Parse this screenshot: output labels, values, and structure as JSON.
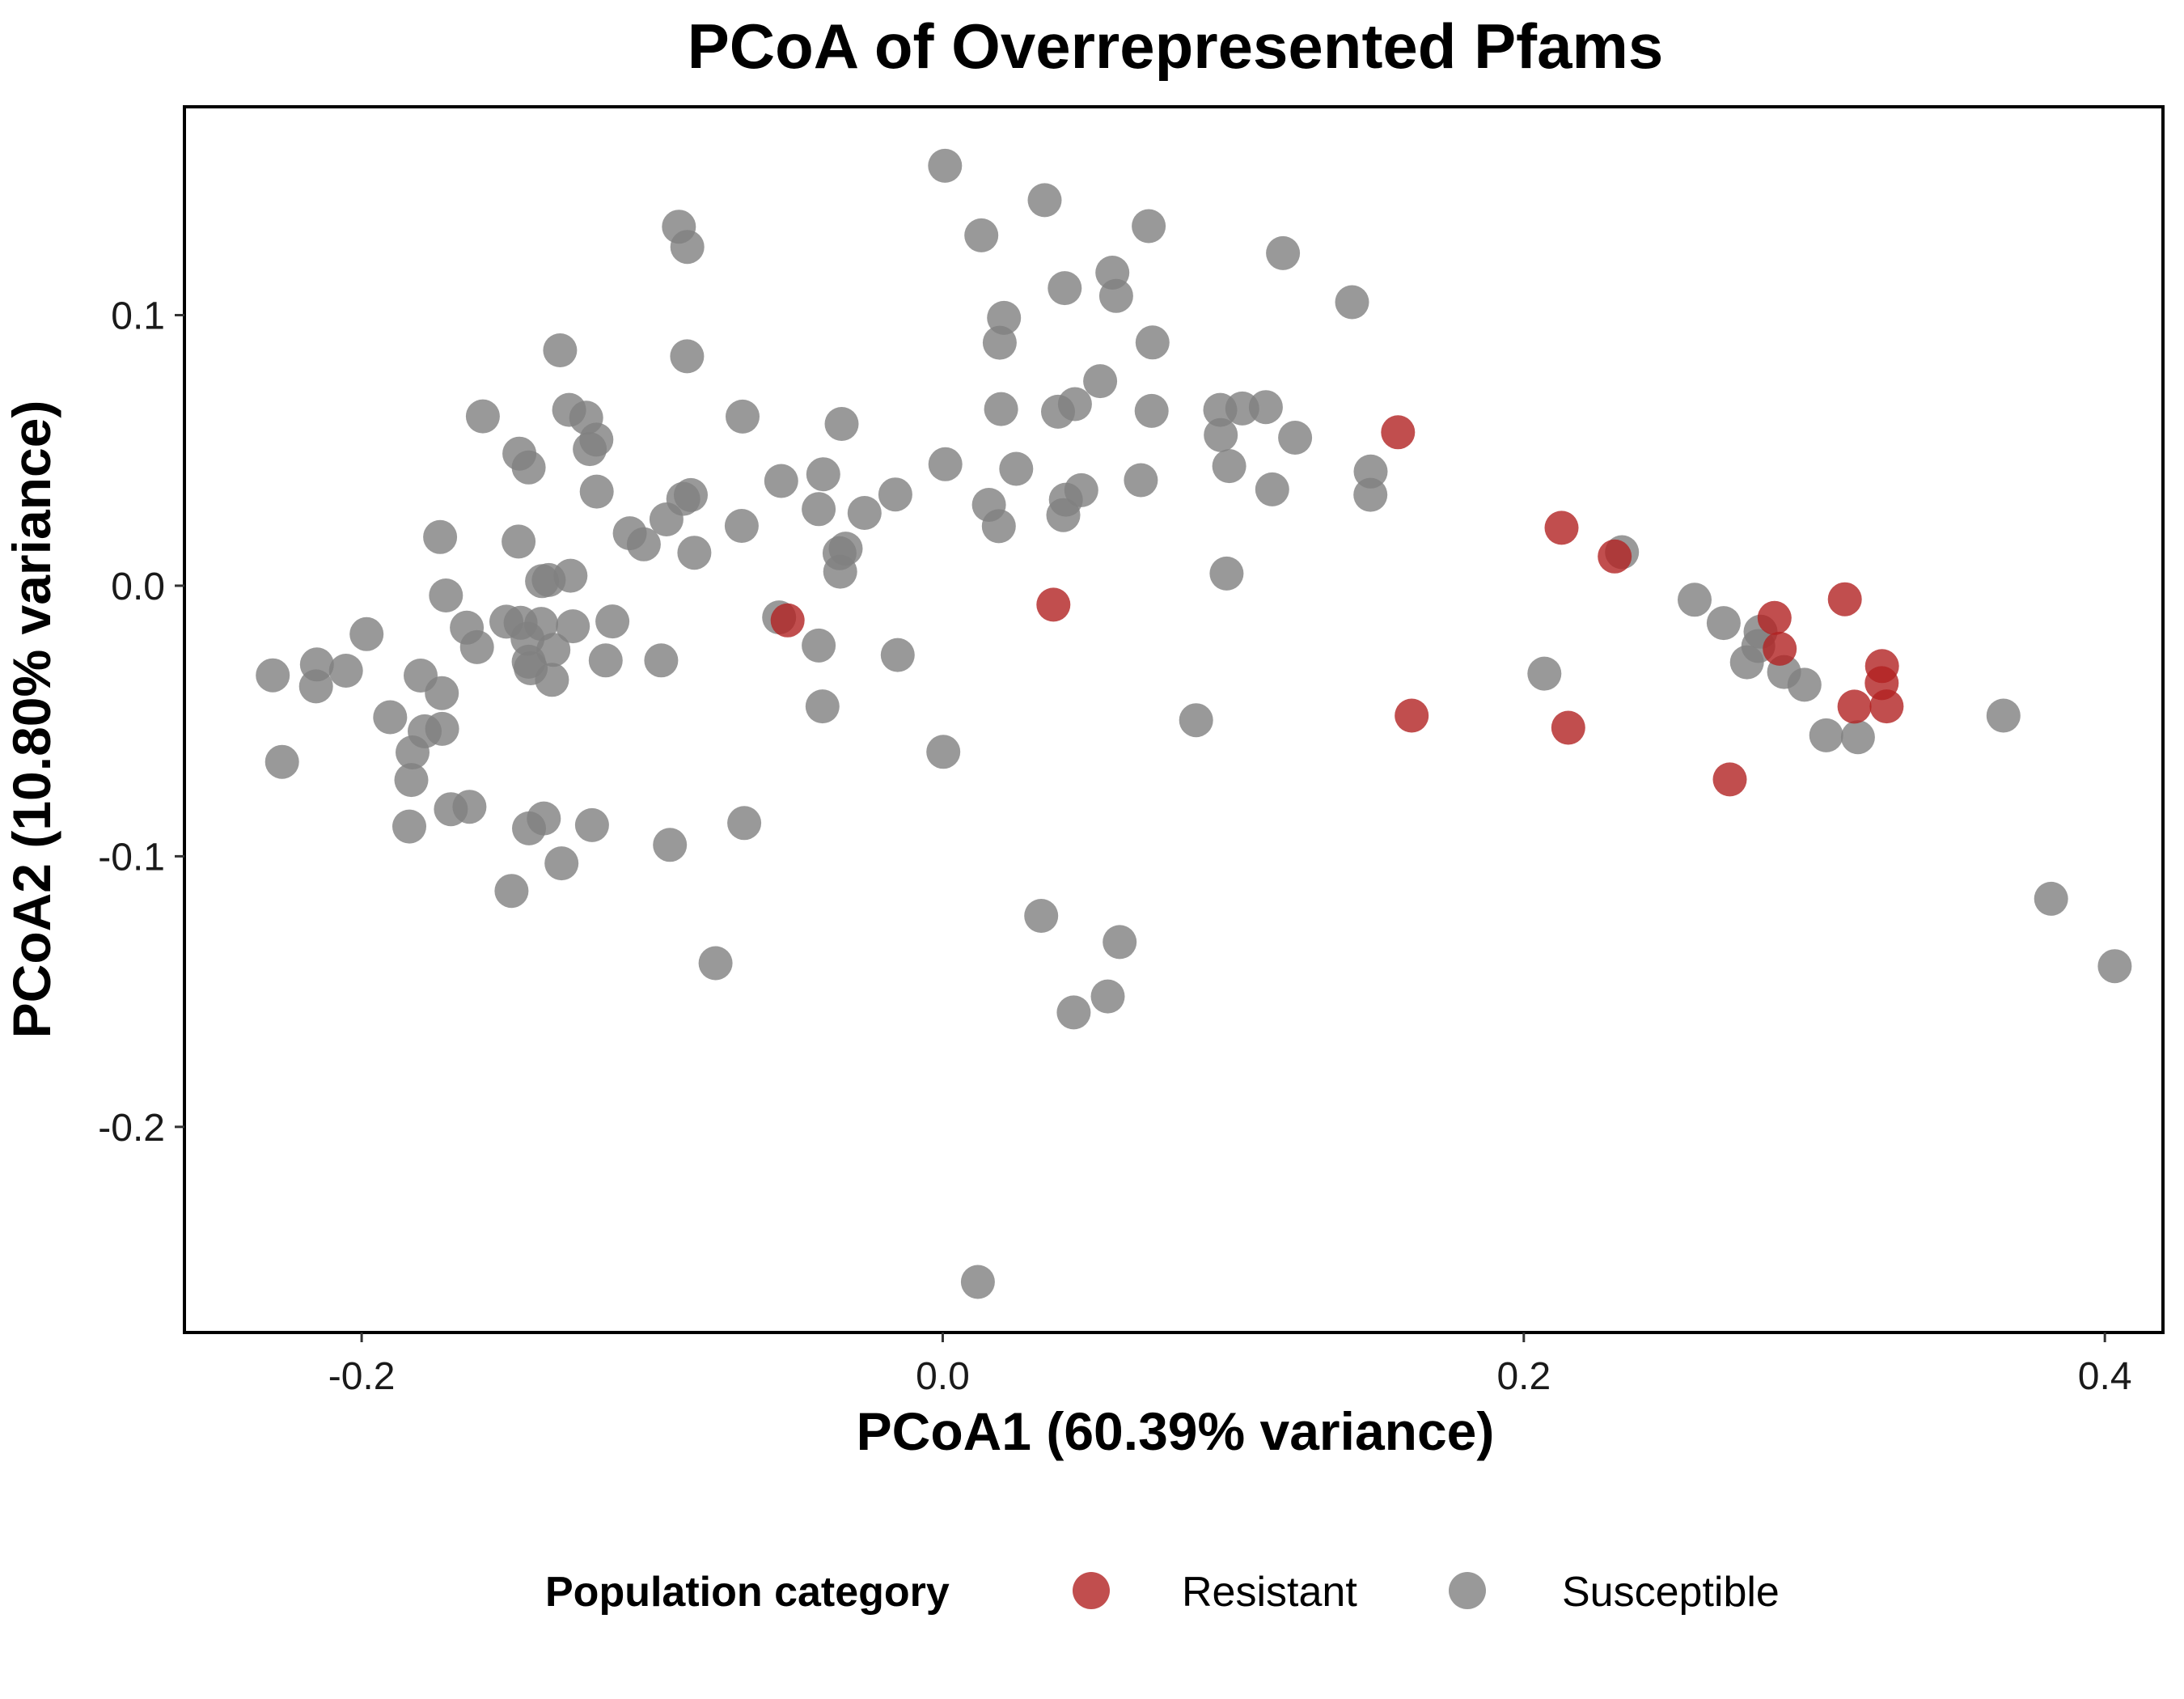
{
  "chart_data": {
    "type": "scatter",
    "title": "PCoA of Overrepresented Pfams",
    "xlabel": "PCoA1 (60.39% variance)",
    "ylabel": "PCoA2 (10.80% variance)",
    "xlim": [
      -0.261,
      0.42
    ],
    "ylim": [
      -0.276,
      0.177
    ],
    "xticks": [
      -0.2,
      0.0,
      0.2,
      0.4
    ],
    "xtick_labels": [
      "-0.2",
      "0.0",
      "0.2",
      "0.4"
    ],
    "yticks": [
      -0.2,
      -0.1,
      0.0,
      0.1
    ],
    "ytick_labels": [
      "-0.2",
      "-0.1",
      "0.0",
      "0.1"
    ],
    "grid": false,
    "legend": {
      "title": "Population category",
      "position": "bottom",
      "entries": [
        {
          "label": "Resistant",
          "color": "#b22222"
        },
        {
          "label": "Susceptible",
          "color": "#808080"
        }
      ]
    },
    "series": [
      {
        "name": "Susceptible",
        "color": "#808080",
        "points": [
          [
            -0.2306,
            -0.0331
          ],
          [
            -0.2274,
            -0.0651
          ],
          [
            -0.2154,
            -0.0291
          ],
          [
            -0.2157,
            -0.0372
          ],
          [
            -0.2054,
            -0.0314
          ],
          [
            -0.1983,
            -0.0179
          ],
          [
            -0.1902,
            -0.0486
          ],
          [
            -0.1825,
            -0.0616
          ],
          [
            -0.1829,
            -0.0718
          ],
          [
            -0.1836,
            -0.089
          ],
          [
            -0.1797,
            -0.0332
          ],
          [
            -0.1783,
            -0.0538
          ],
          [
            -0.1723,
            -0.0529
          ],
          [
            -0.1724,
            -0.0397
          ],
          [
            -0.173,
            0.018
          ],
          [
            -0.171,
            -0.0036
          ],
          [
            -0.1693,
            -0.0826
          ],
          [
            -0.1629,
            -0.0817
          ],
          [
            -0.1638,
            -0.0155
          ],
          [
            -0.1603,
            -0.0227
          ],
          [
            -0.1583,
            0.0626
          ],
          [
            -0.1502,
            -0.0133
          ],
          [
            -0.1484,
            -0.1128
          ],
          [
            -0.1457,
            0.0488
          ],
          [
            -0.146,
            0.0163
          ],
          [
            -0.1453,
            -0.0137
          ],
          [
            -0.1425,
            0.0437
          ],
          [
            -0.1429,
            -0.0196
          ],
          [
            -0.1425,
            -0.0281
          ],
          [
            -0.1418,
            -0.0305
          ],
          [
            -0.1424,
            -0.0897
          ],
          [
            -0.1379,
            0.0017
          ],
          [
            -0.1382,
            -0.0141
          ],
          [
            -0.1373,
            -0.086
          ],
          [
            -0.1356,
            0.0021
          ],
          [
            -0.134,
            -0.0237
          ],
          [
            -0.1345,
            -0.0348
          ],
          [
            -0.1317,
            0.087
          ],
          [
            -0.1312,
            -0.1026
          ],
          [
            -0.1286,
            0.065
          ],
          [
            -0.1281,
            0.0037
          ],
          [
            -0.1273,
            -0.015
          ],
          [
            -0.1227,
            0.0621
          ],
          [
            -0.1215,
            0.0505
          ],
          [
            -0.1192,
            0.054
          ],
          [
            -0.1191,
            0.0348
          ],
          [
            -0.1207,
            -0.0885
          ],
          [
            -0.116,
            -0.0276
          ],
          [
            -0.1137,
            -0.0132
          ],
          [
            -0.1077,
            0.0194
          ],
          [
            -0.1029,
            0.0153
          ],
          [
            -0.0969,
            -0.0276
          ],
          [
            -0.0951,
            0.0245
          ],
          [
            -0.0939,
            -0.0958
          ],
          [
            -0.0908,
            0.1327
          ],
          [
            -0.0893,
            0.0321
          ],
          [
            -0.0867,
            0.0335
          ],
          [
            -0.0879,
            0.1252
          ],
          [
            -0.088,
            0.0848
          ],
          [
            -0.0855,
            0.0122
          ],
          [
            -0.0782,
            -0.1395
          ],
          [
            -0.0689,
            0.0625
          ],
          [
            -0.0692,
            0.0221
          ],
          [
            -0.0683,
            -0.0877
          ],
          [
            -0.0563,
            -0.0117
          ],
          [
            -0.0556,
            0.0387
          ],
          [
            -0.0427,
            0.0283
          ],
          [
            -0.0427,
            -0.0221
          ],
          [
            -0.0411,
            0.0412
          ],
          [
            -0.0414,
            -0.0446
          ],
          [
            -0.0355,
            0.012
          ],
          [
            -0.0353,
            0.0052
          ],
          [
            -0.0348,
            0.0598
          ],
          [
            -0.0334,
            0.0137
          ],
          [
            -0.0269,
            0.0269
          ],
          [
            -0.0163,
            0.0337
          ],
          [
            -0.0155,
            -0.0256
          ],
          [
            0.0008,
            0.1552
          ],
          [
            0.0009,
            0.0449
          ],
          [
            0.0002,
            -0.0614
          ],
          [
            0.0133,
            0.1295
          ],
          [
            0.0121,
            -0.2573
          ],
          [
            0.0159,
            0.0299
          ],
          [
            0.0193,
            0.022
          ],
          [
            0.0196,
            0.0898
          ],
          [
            0.0201,
            0.0653
          ],
          [
            0.0211,
            0.099
          ],
          [
            0.0253,
            0.0432
          ],
          [
            0.0351,
            0.1425
          ],
          [
            0.0339,
            -0.122
          ],
          [
            0.0397,
            0.0643
          ],
          [
            0.042,
            0.11
          ],
          [
            0.0415,
            0.0261
          ],
          [
            0.0424,
            0.0318
          ],
          [
            0.0451,
            -0.1577
          ],
          [
            0.0455,
            0.0671
          ],
          [
            0.0477,
            0.0353
          ],
          [
            0.0542,
            0.0756
          ],
          [
            0.0568,
            -0.1518
          ],
          [
            0.0584,
            0.1157
          ],
          [
            0.0597,
            0.1071
          ],
          [
            0.0609,
            -0.1317
          ],
          [
            0.0682,
            0.039
          ],
          [
            0.0709,
            0.1329
          ],
          [
            0.0722,
            0.0899
          ],
          [
            0.0719,
            0.0646
          ],
          [
            0.0872,
            -0.0497
          ],
          [
            0.0955,
            0.065
          ],
          [
            0.0957,
            0.0557
          ],
          [
            0.0977,
            0.0045
          ],
          [
            0.0986,
            0.0442
          ],
          [
            0.1031,
            0.0655
          ],
          [
            0.1112,
            0.066
          ],
          [
            0.1134,
            0.0356
          ],
          [
            0.1171,
            0.1229
          ],
          [
            0.1213,
            0.0547
          ],
          [
            0.1409,
            0.1048
          ],
          [
            0.1473,
            0.0422
          ],
          [
            0.1472,
            0.0336
          ],
          [
            0.2071,
            -0.0325
          ],
          [
            0.2338,
            0.0124
          ],
          [
            0.2588,
            -0.0052
          ],
          [
            0.2688,
            -0.0138
          ],
          [
            0.2768,
            -0.0283
          ],
          [
            0.2807,
            -0.0223
          ],
          [
            0.2815,
            -0.017
          ],
          [
            0.2896,
            -0.0319
          ],
          [
            0.2966,
            -0.0366
          ],
          [
            0.3041,
            -0.0553
          ],
          [
            0.315,
            -0.056
          ],
          [
            0.3651,
            -0.048
          ],
          [
            0.3815,
            -0.1157
          ],
          [
            0.4034,
            -0.1406
          ]
        ]
      },
      {
        "name": "Resistant",
        "color": "#b22222",
        "points": [
          [
            -0.0534,
            -0.0128
          ],
          [
            0.0381,
            -0.007
          ],
          [
            0.1567,
            0.0567
          ],
          [
            0.1614,
            -0.048
          ],
          [
            0.213,
            0.0214
          ],
          [
            0.2153,
            -0.0525
          ],
          [
            0.2313,
            0.0108
          ],
          [
            0.2709,
            -0.0716
          ],
          [
            0.2863,
            -0.0119
          ],
          [
            0.2881,
            -0.0233
          ],
          [
            0.3105,
            -0.005
          ],
          [
            0.3138,
            -0.0447
          ],
          [
            0.3233,
            -0.0297
          ],
          [
            0.3232,
            -0.036
          ],
          [
            0.3249,
            -0.0446
          ]
        ]
      }
    ]
  }
}
